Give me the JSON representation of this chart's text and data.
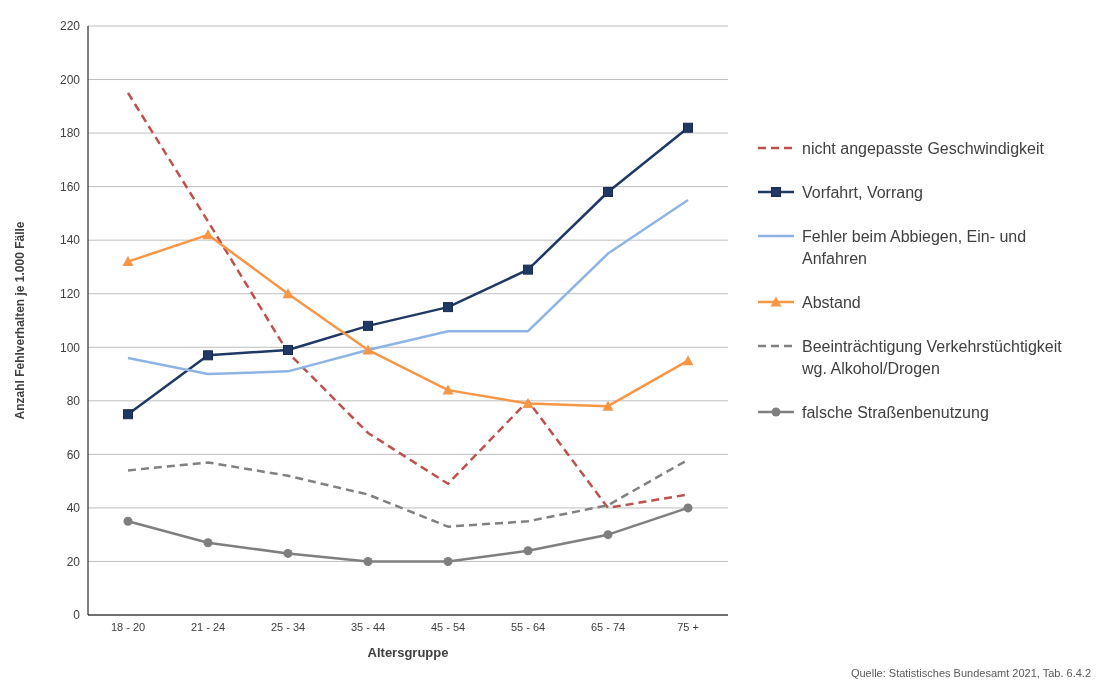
{
  "chart_data": {
    "type": "line",
    "xlabel": "Altersgruppe",
    "ylabel": "Anzahl Fehlverhalten je 1.000 Fälle",
    "categories": [
      "18 - 20",
      "21 - 24",
      "25 - 34",
      "35 - 44",
      "45 - 54",
      "55 - 64",
      "65 - 74",
      "75 +"
    ],
    "series": [
      {
        "name": "nicht angepasste Geschwindigkeit",
        "color": "#c0504d",
        "marker": "none",
        "line_style": "dashed",
        "values": [
          195,
          147,
          98,
          68,
          49,
          80,
          40,
          45
        ]
      },
      {
        "name": "Vorfahrt, Vorrang",
        "color": "#1f3864",
        "marker": "square",
        "line_style": "solid",
        "values": [
          75,
          97,
          99,
          108,
          115,
          129,
          158,
          182
        ]
      },
      {
        "name": "Fehler beim Abbiegen, Ein- und Anfahren",
        "color": "#8eb4e3",
        "marker": "none",
        "line_style": "solid",
        "values": [
          96,
          90,
          91,
          99,
          106,
          106,
          135,
          155
        ]
      },
      {
        "name": "Abstand",
        "color": "#f79646",
        "marker": "triangle",
        "line_style": "solid",
        "values": [
          132,
          142,
          120,
          99,
          84,
          79,
          78,
          95
        ]
      },
      {
        "name": "Beeinträchtigung Verkehrstüchtigkeit wg. Alkohol/Drogen",
        "color": "#808080",
        "marker": "none",
        "line_style": "dashed",
        "values": [
          54,
          57,
          52,
          45,
          33,
          35,
          41,
          58
        ]
      },
      {
        "name": "falsche Straßenbenutzung",
        "color": "#7f7f7f",
        "marker": "circle",
        "line_style": "solid",
        "values": [
          35,
          27,
          23,
          20,
          20,
          24,
          30,
          40
        ]
      }
    ],
    "ylim": [
      0,
      220
    ],
    "yticks": [
      0,
      20,
      40,
      60,
      80,
      100,
      120,
      140,
      160,
      180,
      200,
      220
    ],
    "grid": "y",
    "legend": "right",
    "annotations": [
      "Quelle: Statistisches Bundesamt 2021, Tab. 6.4.2"
    ]
  }
}
